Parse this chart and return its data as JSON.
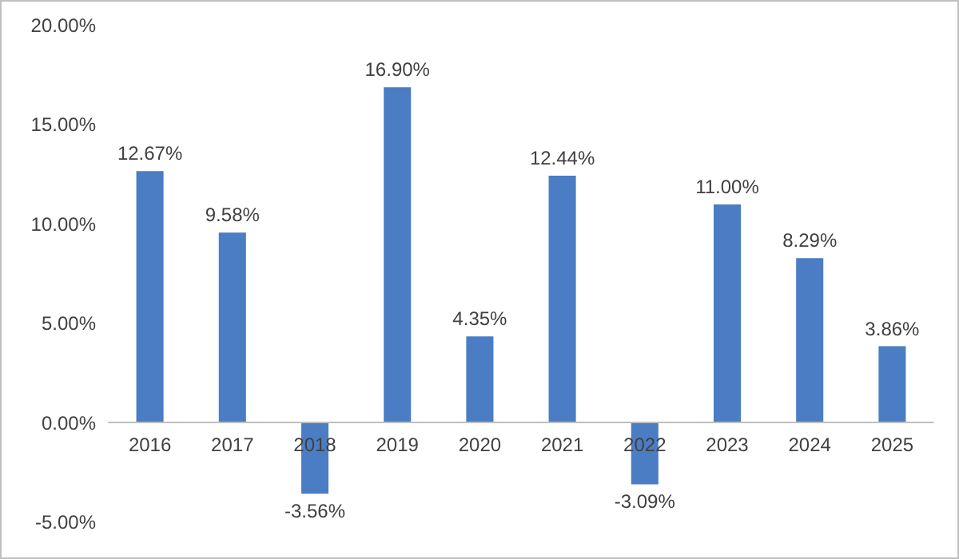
{
  "chart_data": {
    "type": "bar",
    "categories": [
      "2016",
      "2017",
      "2018",
      "2019",
      "2020",
      "2021",
      "2022",
      "2023",
      "2024",
      "2025"
    ],
    "values": [
      12.67,
      9.58,
      -3.56,
      16.9,
      4.35,
      12.44,
      -3.09,
      11.0,
      8.29,
      3.86
    ],
    "value_labels": [
      "12.67%",
      "9.58%",
      "-3.56%",
      "16.90%",
      "4.35%",
      "12.44%",
      "-3.09%",
      "11.00%",
      "8.29%",
      "3.86%"
    ],
    "color": "#4a7dc4",
    "ylim": [
      -5,
      20
    ],
    "yticks": [
      {
        "value": -5,
        "label": "-5.00%"
      },
      {
        "value": 0,
        "label": "0.00%"
      },
      {
        "value": 5,
        "label": "5.00%"
      },
      {
        "value": 10,
        "label": "10.00%"
      },
      {
        "value": 15,
        "label": "15.00%"
      },
      {
        "value": 20,
        "label": "20.00%"
      }
    ],
    "grid": false
  }
}
